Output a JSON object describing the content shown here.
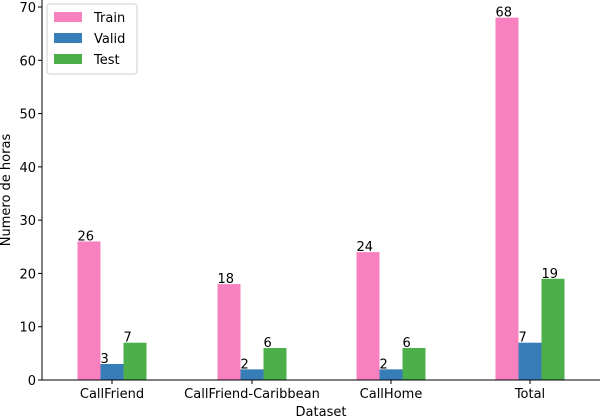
{
  "chart_data": {
    "type": "bar",
    "categories": [
      "CallFriend",
      "CallFriend-Caribbean",
      "CallHome",
      "Total"
    ],
    "series": [
      {
        "name": "Train",
        "values": [
          26,
          18,
          24,
          68
        ],
        "color": "#f781bf"
      },
      {
        "name": "Valid",
        "values": [
          3,
          2,
          2,
          7
        ],
        "color": "#377eb8"
      },
      {
        "name": "Test",
        "values": [
          7,
          6,
          6,
          19
        ],
        "color": "#4daf4a"
      }
    ],
    "xlabel": "Dataset",
    "ylabel": "Numero de horas",
    "ylim": [
      0,
      70
    ],
    "yticks": [
      0,
      10,
      20,
      30,
      40,
      50,
      60,
      70
    ],
    "grid": false,
    "legend_position": "top-left",
    "data_labels": true
  }
}
